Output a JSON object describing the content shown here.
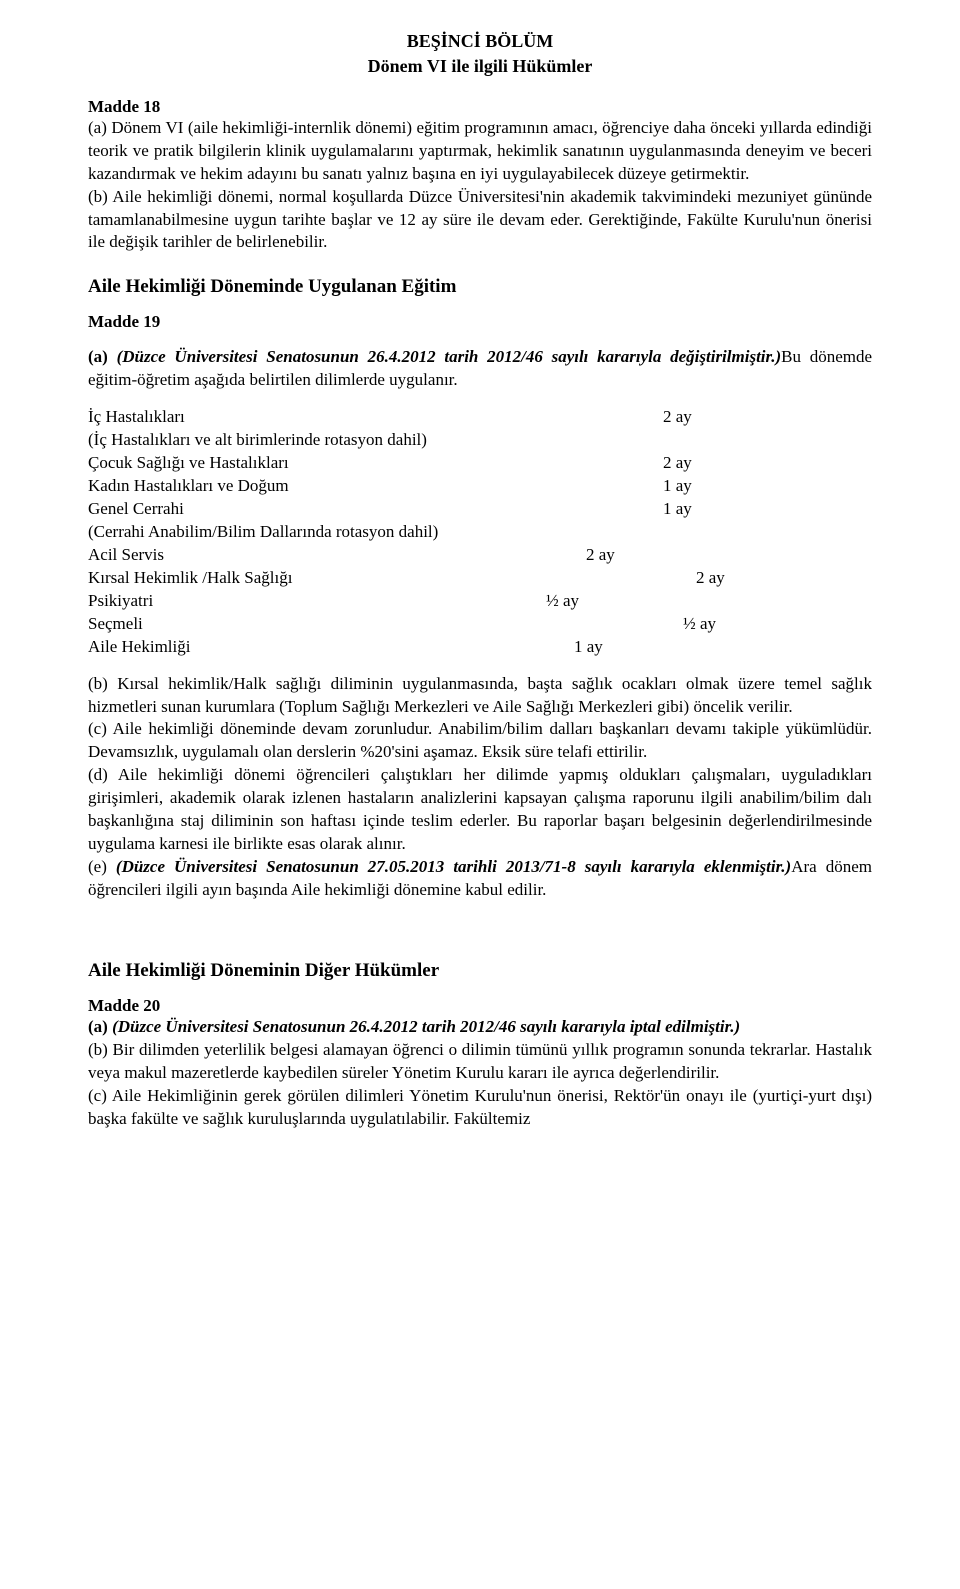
{
  "chapter": {
    "title": "BEŞİNCİ BÖLÜM",
    "subtitle": "Dönem VI ile ilgili Hükümler"
  },
  "article18": {
    "label": "Madde 18",
    "a": "(a) Dönem VI (aile hekimliği-internlik dönemi) eğitim programının amacı, öğrenciye daha önceki yıllarda edindiği teorik ve pratik bilgilerin klinik uygulamalarını yaptırmak, hekimlik sanatının uygulanmasında deneyim ve beceri kazandırmak ve hekim adayını bu sanatı yalnız başına en iyi uygulayabilecek düzeye getirmektir.",
    "b": "(b) Aile hekimliği dönemi, normal koşullarda Düzce Üniversitesi'nin akademik takvimindeki mezuniyet gününde tamamlanabilmesine uygun tarihte başlar ve 12 ay süre ile devam eder. Gerektiğinde, Fakülte Kurulu'nun önerisi ile değişik tarihler de belirlenebilir."
  },
  "sectionA": {
    "title": "Aile Hekimliği Döneminde Uygulanan Eğitim"
  },
  "article19": {
    "label": "Madde 19",
    "a_prefix": "(a) ",
    "a_change": "(Düzce Üniversitesi Senatosunun 26.4.2012 tarih 2012/46 sayılı kararıyla değiştirilmiştir.)",
    "a_rest": "Bu dönemde eğitim-öğretim aşağıda belirtilen dilimlerde uygulanır.",
    "durations": [
      {
        "label": "İç Hastalıkları",
        "val": "2 ay",
        "tab": "tab1"
      },
      {
        "label": "(İç Hastalıkları ve alt birimlerinde rotasyon dahil)",
        "val": "",
        "tab": ""
      },
      {
        "label": "Çocuk Sağlığı ve Hastalıkları",
        "val": "2 ay",
        "tab": "tab1"
      },
      {
        "label": "Kadın Hastalıkları ve Doğum",
        "val": "1 ay",
        "tab": "tab1"
      },
      {
        "label": "Genel Cerrahi",
        "val": "1 ay",
        "tab": "tab1"
      },
      {
        "label": "(Cerrahi Anabilim/Bilim Dallarında rotasyon dahil)",
        "val": "",
        "tab": ""
      },
      {
        "label": "Acil Servis",
        "val": "2 ay",
        "tab": "tab2"
      },
      {
        "label": "Kırsal Hekimlik /Halk Sağlığı",
        "val": "2  ay",
        "tab": "tab3"
      },
      {
        "label": "Psikiyatri",
        "val": "½  ay",
        "tab": "tab4"
      },
      {
        "label": "Seçmeli",
        "val": "½  ay",
        "tab": "tab5"
      },
      {
        "label": "Aile Hekimliği",
        "val": "1 ay",
        "tab": "tab6"
      }
    ],
    "b": " (b) Kırsal hekimlik/Halk sağlığı diliminin uygulanmasında, başta sağlık ocakları olmak üzere temel sağlık hizmetleri sunan kurumlara (Toplum Sağlığı Merkezleri ve Aile Sağlığı Merkezleri gibi) öncelik verilir.",
    "c": " (c) Aile hekimliği döneminde devam zorunludur. Anabilim/bilim dalları başkanları devamı takiple yükümlüdür. Devamsızlık, uygulamalı olan derslerin %20'sini aşamaz. Eksik süre telafi ettirilir.",
    "d": "(d) Aile hekimliği dönemi öğrencileri çalıştıkları her dilimde yapmış oldukları çalışmaları, uyguladıkları girişimleri, akademik olarak izlenen hastaların analizlerini kapsayan çalışma raporunu ilgili anabilim/bilim dalı başkanlığına staj diliminin son haftası içinde teslim ederler. Bu raporlar başarı belgesinin değerlendirilmesinde uygulama karnesi ile birlikte esas olarak alınır.",
    "e_prefix": "(e)  ",
    "e_change": "(Düzce Üniversitesi Senatosunun 27.05.2013 tarihli 2013/71-8  sayılı kararıyla eklenmiştir.)",
    "e_rest": "Ara dönem öğrencileri ilgili ayın başında Aile hekimliği dönemine kabul edilir."
  },
  "sectionB": {
    "title": "Aile Hekimliği Döneminin Diğer Hükümler"
  },
  "article20": {
    "label": "Madde 20",
    "a_prefix": "(a) ",
    "a_change": "(Düzce Üniversitesi Senatosunun 26.4.2012 tarih 2012/46 sayılı kararıyla iptal edilmiştir.)",
    "b": " (b) Bir dilimden yeterlilik belgesi alamayan öğrenci o dilimin tümünü yıllık programın sonunda tekrarlar. Hastalık veya makul mazeretlerde kaybedilen süreler Yönetim Kurulu kararı ile ayrıca değerlendirilir.",
    "c": "(c) Aile Hekimliğinin gerek görülen dilimleri Yönetim Kurulu'nun önerisi, Rektör'ün onayı ile (yurtiçi-yurt dışı) başka fakülte ve sağlık kuruluşlarında uygulatılabilir. Fakültemiz"
  }
}
